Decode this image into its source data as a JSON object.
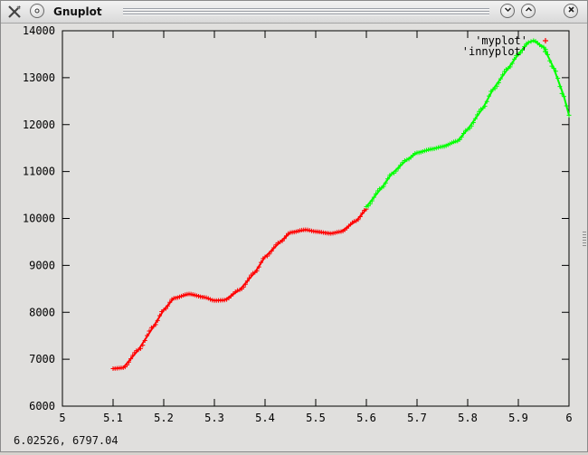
{
  "window": {
    "title": "Gnuplot",
    "buttons": [
      "minimize",
      "maximize",
      "close"
    ]
  },
  "icons": {
    "app": "x-tools-icon",
    "menu": "window-menu-icon",
    "minimize": "chevron-down-icon",
    "maximize": "chevron-up-icon",
    "close": "close-icon"
  },
  "status": {
    "coords": "6.02526,  6797.04"
  },
  "colors": {
    "myplot": "#ff0000",
    "innyplot": "#00ff00",
    "background": "#e0dfdd"
  },
  "chart_data": {
    "type": "line",
    "title": "",
    "xlabel": "",
    "ylabel": "",
    "xlim": [
      5,
      6
    ],
    "ylim": [
      6000,
      14000
    ],
    "x_ticks": [
      "5",
      "5.1",
      "5.2",
      "5.3",
      "5.4",
      "5.5",
      "5.6",
      "5.7",
      "5.8",
      "5.9",
      "6"
    ],
    "y_ticks": [
      "6000",
      "7000",
      "8000",
      "9000",
      "10000",
      "11000",
      "12000",
      "13000",
      "14000"
    ],
    "grid": false,
    "legend": "top-right",
    "series": [
      {
        "name": "'myplot'",
        "color": "#ff0000",
        "points": [
          [
            5.1,
            6800
          ],
          [
            5.12,
            6820
          ],
          [
            5.15,
            7200
          ],
          [
            5.18,
            7700
          ],
          [
            5.2,
            8050
          ],
          [
            5.22,
            8300
          ],
          [
            5.25,
            8390
          ],
          [
            5.28,
            8320
          ],
          [
            5.3,
            8250
          ],
          [
            5.32,
            8260
          ],
          [
            5.35,
            8480
          ],
          [
            5.38,
            8850
          ],
          [
            5.4,
            9180
          ],
          [
            5.43,
            9500
          ],
          [
            5.45,
            9700
          ],
          [
            5.48,
            9760
          ],
          [
            5.5,
            9720
          ],
          [
            5.53,
            9680
          ],
          [
            5.55,
            9720
          ],
          [
            5.58,
            9950
          ],
          [
            5.6,
            10200
          ]
        ]
      },
      {
        "name": "'innyplot'",
        "color": "#00ff00",
        "points": [
          [
            5.6,
            10250
          ],
          [
            5.63,
            10650
          ],
          [
            5.65,
            10950
          ],
          [
            5.68,
            11250
          ],
          [
            5.7,
            11400
          ],
          [
            5.73,
            11480
          ],
          [
            5.75,
            11530
          ],
          [
            5.78,
            11650
          ],
          [
            5.8,
            11900
          ],
          [
            5.83,
            12350
          ],
          [
            5.85,
            12750
          ],
          [
            5.88,
            13200
          ],
          [
            5.9,
            13500
          ],
          [
            5.92,
            13750
          ],
          [
            5.93,
            13790
          ],
          [
            5.95,
            13650
          ],
          [
            5.97,
            13200
          ],
          [
            5.99,
            12600
          ],
          [
            6.0,
            12200
          ]
        ]
      }
    ]
  }
}
